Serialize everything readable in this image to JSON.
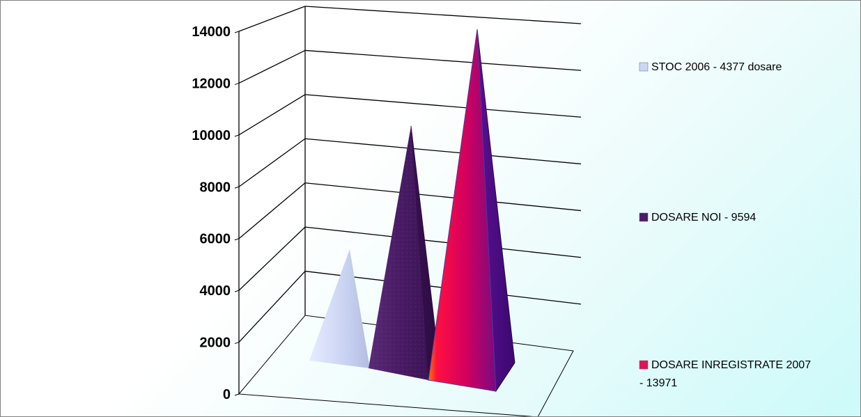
{
  "chart_data": {
    "type": "bar",
    "subtype": "3d-pyramid",
    "title": "",
    "xlabel": "",
    "ylabel": "",
    "ylim": [
      0,
      14000
    ],
    "y_ticks": [
      "0",
      "2000",
      "4000",
      "6000",
      "8000",
      "10000",
      "12000",
      "14000"
    ],
    "grid": true,
    "legend_position": "right",
    "series": [
      {
        "name": "STOC 2006 - 4377 dosare",
        "values": [
          4377
        ],
        "color": "#ccd6f5"
      },
      {
        "name": "DOSARE  NOI - 9594",
        "values": [
          9594
        ],
        "color": "#4b1a6b"
      },
      {
        "name": "DOSARE INREGISTRATE 2007 - 13971",
        "values": [
          13971
        ],
        "color": "#e8105a"
      }
    ],
    "legend": [
      {
        "line1": "STOC 2006 - 4377 dosare",
        "line2": ""
      },
      {
        "line1": "DOSARE  NOI - 9594",
        "line2": ""
      },
      {
        "line1": "DOSARE INREGISTRATE 2007",
        "line2": "- 13971"
      }
    ]
  }
}
